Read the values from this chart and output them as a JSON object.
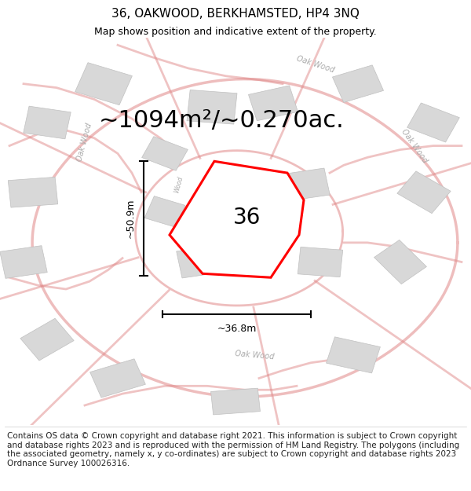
{
  "title": "36, OAKWOOD, BERKHAMSTED, HP4 3NQ",
  "subtitle": "Map shows position and indicative extent of the property.",
  "area_text": "~1094m²/~0.270ac.",
  "width_label": "~36.8m",
  "height_label": "~50.9m",
  "property_label": "36",
  "footer": "Contains OS data © Crown copyright and database right 2021. This information is subject to Crown copyright and database rights 2023 and is reproduced with the permission of HM Land Registry. The polygons (including the associated geometry, namely x, y co-ordinates) are subject to Crown copyright and database rights 2023 Ordnance Survey 100026316.",
  "bg_color": "#ffffff",
  "road_color": "#e08888",
  "building_color": "#d8d8d8",
  "building_edge": "#c0c0c0",
  "street_label_color": "#aaaaaa",
  "dim_color": "#000000",
  "title_fontsize": 11,
  "subtitle_fontsize": 9,
  "area_fontsize": 22,
  "prop_label_fontsize": 20,
  "footer_fontsize": 7.5
}
